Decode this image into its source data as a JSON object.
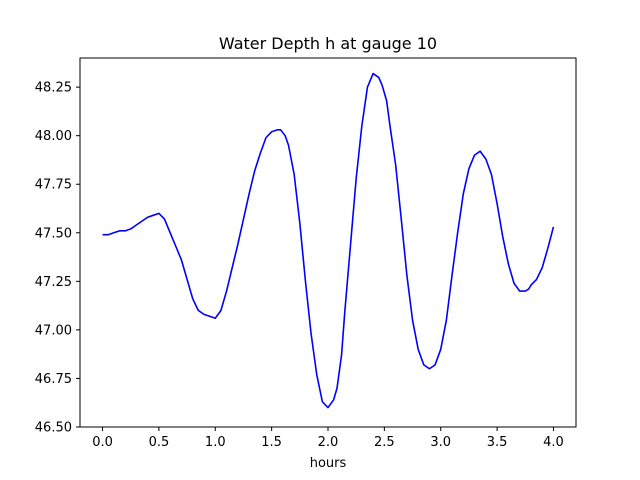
{
  "chart_data": {
    "type": "line",
    "title": "Water Depth h at gauge 10",
    "xlabel": "hours",
    "ylabel": "",
    "xlim": [
      -0.2,
      4.2
    ],
    "ylim": [
      46.5,
      48.4
    ],
    "xticks": [
      0.0,
      0.5,
      1.0,
      1.5,
      2.0,
      2.5,
      3.0,
      3.5,
      4.0
    ],
    "xtick_labels": [
      "0.0",
      "0.5",
      "1.0",
      "1.5",
      "2.0",
      "2.5",
      "3.0",
      "3.5",
      "4.0"
    ],
    "yticks": [
      46.5,
      46.75,
      47.0,
      47.25,
      47.5,
      47.75,
      48.0,
      48.25
    ],
    "ytick_labels": [
      "46.50",
      "46.75",
      "47.00",
      "47.25",
      "47.50",
      "47.75",
      "48.00",
      "48.25"
    ],
    "grid": false,
    "series": [
      {
        "color": "#0000ff",
        "x": [
          0.0,
          0.05,
          0.1,
          0.15,
          0.2,
          0.25,
          0.3,
          0.35,
          0.4,
          0.45,
          0.5,
          0.55,
          0.6,
          0.65,
          0.7,
          0.75,
          0.8,
          0.85,
          0.9,
          0.95,
          1.0,
          1.05,
          1.1,
          1.15,
          1.2,
          1.25,
          1.3,
          1.35,
          1.4,
          1.45,
          1.5,
          1.55,
          1.58,
          1.62,
          1.65,
          1.7,
          1.75,
          1.8,
          1.85,
          1.9,
          1.95,
          2.0,
          2.05,
          2.08,
          2.12,
          2.15,
          2.2,
          2.25,
          2.3,
          2.35,
          2.4,
          2.45,
          2.48,
          2.52,
          2.55,
          2.6,
          2.65,
          2.7,
          2.75,
          2.8,
          2.85,
          2.9,
          2.95,
          3.0,
          3.05,
          3.1,
          3.15,
          3.2,
          3.25,
          3.3,
          3.35,
          3.4,
          3.45,
          3.5,
          3.55,
          3.6,
          3.65,
          3.7,
          3.75,
          3.78,
          3.8,
          3.85,
          3.9,
          3.95,
          4.0
        ],
        "y": [
          47.49,
          47.49,
          47.5,
          47.51,
          47.51,
          47.52,
          47.54,
          47.56,
          47.58,
          47.59,
          47.6,
          47.57,
          47.5,
          47.43,
          47.36,
          47.26,
          47.16,
          47.1,
          47.08,
          47.07,
          47.06,
          47.1,
          47.2,
          47.32,
          47.44,
          47.57,
          47.7,
          47.82,
          47.91,
          47.99,
          48.02,
          48.03,
          48.03,
          48.0,
          47.95,
          47.8,
          47.55,
          47.25,
          46.98,
          46.77,
          46.63,
          46.6,
          46.64,
          46.7,
          46.87,
          47.1,
          47.44,
          47.78,
          48.05,
          48.25,
          48.32,
          48.3,
          48.26,
          48.18,
          48.05,
          47.85,
          47.57,
          47.28,
          47.05,
          46.9,
          46.82,
          46.8,
          46.82,
          46.9,
          47.05,
          47.28,
          47.5,
          47.7,
          47.83,
          47.9,
          47.92,
          47.88,
          47.8,
          47.65,
          47.48,
          47.34,
          47.24,
          47.2,
          47.2,
          47.21,
          47.23,
          47.26,
          47.32,
          47.42,
          47.53
        ]
      }
    ]
  }
}
